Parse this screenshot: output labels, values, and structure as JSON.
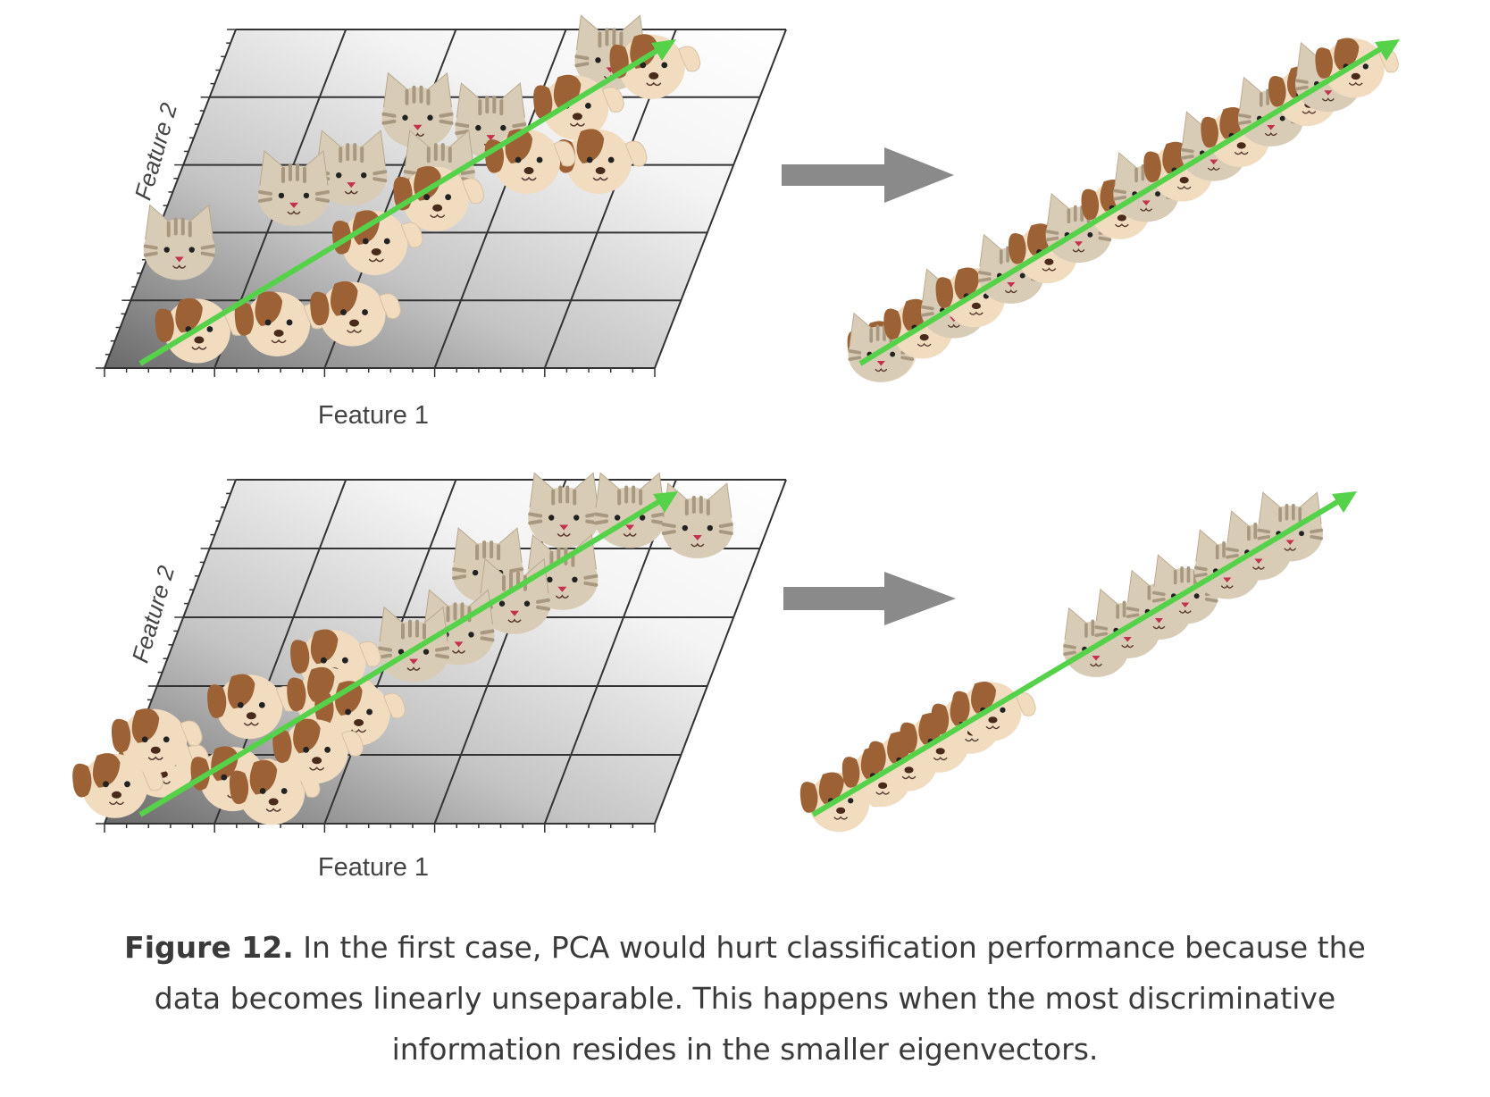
{
  "panels": [
    {
      "id": "top",
      "x_axis_label": "Feature 1",
      "y_axis_label": "Feature 2",
      "cats": [
        [
          0.7,
          0.92
        ],
        [
          0.39,
          0.75
        ],
        [
          0.53,
          0.72
        ],
        [
          0.31,
          0.58
        ],
        [
          0.47,
          0.58
        ],
        [
          0.22,
          0.52
        ],
        [
          0.05,
          0.36
        ]
      ],
      "dogs": [
        [
          0.78,
          0.9
        ],
        [
          0.67,
          0.78
        ],
        [
          0.75,
          0.62
        ],
        [
          0.62,
          0.62
        ],
        [
          0.48,
          0.51
        ],
        [
          0.4,
          0.38
        ],
        [
          0.14,
          0.12
        ],
        [
          0.28,
          0.14
        ],
        [
          0.41,
          0.17
        ]
      ],
      "projected": [
        {
          "kind": "dog",
          "t": 0.05
        },
        {
          "kind": "cat",
          "t": 0.04
        },
        {
          "kind": "dog",
          "t": 0.12
        },
        {
          "kind": "cat",
          "t": 0.18
        },
        {
          "kind": "dog",
          "t": 0.22
        },
        {
          "kind": "cat",
          "t": 0.29
        },
        {
          "kind": "dog",
          "t": 0.36
        },
        {
          "kind": "cat",
          "t": 0.42
        },
        {
          "kind": "dog",
          "t": 0.5
        },
        {
          "kind": "cat",
          "t": 0.55
        },
        {
          "kind": "dog",
          "t": 0.62
        },
        {
          "kind": "cat",
          "t": 0.68
        },
        {
          "kind": "dog",
          "t": 0.73
        },
        {
          "kind": "cat",
          "t": 0.79
        },
        {
          "kind": "dog",
          "t": 0.86
        },
        {
          "kind": "cat",
          "t": 0.9
        },
        {
          "kind": "dog",
          "t": 0.95
        }
      ]
    },
    {
      "id": "bottom",
      "x_axis_label": "Feature 1",
      "y_axis_label": "Feature 2",
      "cats": [
        [
          0.62,
          0.9
        ],
        [
          0.74,
          0.9
        ],
        [
          0.87,
          0.87
        ],
        [
          0.52,
          0.74
        ],
        [
          0.66,
          0.72
        ],
        [
          0.59,
          0.65
        ],
        [
          0.51,
          0.56
        ],
        [
          0.44,
          0.51
        ]
      ],
      "dogs": [
        [
          0.3,
          0.48
        ],
        [
          0.18,
          0.35
        ],
        [
          0.32,
          0.37
        ],
        [
          0.38,
          0.33
        ],
        [
          0.06,
          0.18
        ],
        [
          0.2,
          0.14
        ],
        [
          0.28,
          0.1
        ],
        [
          0.33,
          0.22
        ],
        [
          -0.01,
          0.12
        ],
        [
          0.03,
          0.25
        ]
      ],
      "projected": [
        {
          "kind": "dog",
          "t": 0.05
        },
        {
          "kind": "dog",
          "t": 0.13
        },
        {
          "kind": "dog",
          "t": 0.18
        },
        {
          "kind": "dog",
          "t": 0.24
        },
        {
          "kind": "dog",
          "t": 0.3
        },
        {
          "kind": "dog",
          "t": 0.34
        },
        {
          "kind": "cat",
          "t": 0.54
        },
        {
          "kind": "cat",
          "t": 0.6
        },
        {
          "kind": "cat",
          "t": 0.66
        },
        {
          "kind": "cat",
          "t": 0.71
        },
        {
          "kind": "cat",
          "t": 0.79
        },
        {
          "kind": "cat",
          "t": 0.85
        },
        {
          "kind": "cat",
          "t": 0.91
        }
      ]
    }
  ],
  "caption": {
    "bold": "Figure 12.",
    "text": " In the first case, PCA would hurt classification performance because the data becomes linearly unseparable. This happens when the most discriminative information resides in the smaller eigenvectors."
  },
  "colors": {
    "arrow_green": "#55d24a",
    "transform_arrow": "#8a8a8a",
    "grid_line": "#333333",
    "cat_fur": "#d9ccb6",
    "cat_stripes": "#a8987f",
    "dog_fur": "#f1dcc0",
    "dog_ears": "#9c6235",
    "nose_pink": "#c2314e",
    "nose_brown": "#4a2a1a"
  }
}
